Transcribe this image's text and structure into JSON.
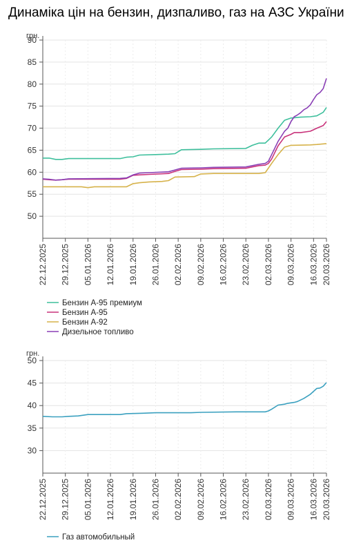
{
  "page": {
    "title": "Динаміка цін на бензин, дизпаливо, газ на АЗС України"
  },
  "chart_data": [
    {
      "type": "line",
      "ylabel": "грн.",
      "ylim": [
        45,
        90
      ],
      "yticks": [
        50,
        55,
        60,
        65,
        70,
        75,
        80,
        85,
        90
      ],
      "x_range": [
        "2025-12-22",
        "2026-03-20"
      ],
      "xticks": [
        "22.12.2025",
        "29.12.2025",
        "05.01.2026",
        "12.01.2026",
        "19.01.2026",
        "26.01.2026",
        "02.02.2026",
        "09.02.2026",
        "16.02.2026",
        "23.02.2026",
        "02.03.2026",
        "09.03.2026",
        "16.03.2026",
        "20.03.2026"
      ],
      "grid": true,
      "legend_position": "bottom",
      "series": [
        {
          "name": "Бензин А-95 премиум",
          "color": "#3dbf9c",
          "points": [
            [
              "2025-12-22",
              63.2
            ],
            [
              "2025-12-24",
              63.2
            ],
            [
              "2025-12-26",
              62.9
            ],
            [
              "2025-12-28",
              62.9
            ],
            [
              "2025-12-30",
              63.1
            ],
            [
              "2026-01-15",
              63.1
            ],
            [
              "2026-01-17",
              63.4
            ],
            [
              "2026-01-19",
              63.5
            ],
            [
              "2026-01-21",
              63.9
            ],
            [
              "2026-01-26",
              64.0
            ],
            [
              "2026-01-30",
              64.1
            ],
            [
              "2026-02-01",
              64.2
            ],
            [
              "2026-02-03",
              65.1
            ],
            [
              "2026-02-09",
              65.2
            ],
            [
              "2026-02-13",
              65.3
            ],
            [
              "2026-02-23",
              65.4
            ],
            [
              "2026-02-25",
              66.1
            ],
            [
              "2026-02-27",
              66.6
            ],
            [
              "2026-03-01",
              66.6
            ],
            [
              "2026-03-03",
              68.0
            ],
            [
              "2026-03-05",
              70.0
            ],
            [
              "2026-03-07",
              71.8
            ],
            [
              "2026-03-09",
              72.3
            ],
            [
              "2026-03-12",
              72.5
            ],
            [
              "2026-03-15",
              72.6
            ],
            [
              "2026-03-17",
              72.8
            ],
            [
              "2026-03-19",
              73.6
            ],
            [
              "2026-03-20",
              74.7
            ]
          ]
        },
        {
          "name": "Бензин А-95",
          "color": "#c8327a",
          "points": [
            [
              "2025-12-22",
              58.4
            ],
            [
              "2025-12-24",
              58.3
            ],
            [
              "2025-12-26",
              58.2
            ],
            [
              "2025-12-28",
              58.3
            ],
            [
              "2025-12-30",
              58.4
            ],
            [
              "2026-01-15",
              58.4
            ],
            [
              "2026-01-17",
              58.6
            ],
            [
              "2026-01-19",
              59.3
            ],
            [
              "2026-01-21",
              59.4
            ],
            [
              "2026-01-24",
              59.5
            ],
            [
              "2026-01-30",
              59.7
            ],
            [
              "2026-02-01",
              60.2
            ],
            [
              "2026-02-03",
              60.6
            ],
            [
              "2026-02-09",
              60.7
            ],
            [
              "2026-02-13",
              60.8
            ],
            [
              "2026-02-23",
              60.9
            ],
            [
              "2026-02-25",
              61.2
            ],
            [
              "2026-02-27",
              61.5
            ],
            [
              "2026-03-01",
              61.6
            ],
            [
              "2026-03-02",
              62.0
            ],
            [
              "2026-03-03",
              63.0
            ],
            [
              "2026-03-05",
              66.0
            ],
            [
              "2026-03-07",
              68.0
            ],
            [
              "2026-03-09",
              68.6
            ],
            [
              "2026-03-10",
              69.0
            ],
            [
              "2026-03-12",
              69.0
            ],
            [
              "2026-03-15",
              69.3
            ],
            [
              "2026-03-17",
              70.0
            ],
            [
              "2026-03-19",
              70.6
            ],
            [
              "2026-03-20",
              71.5
            ]
          ]
        },
        {
          "name": "Бензин А-92",
          "color": "#d6b24a",
          "points": [
            [
              "2025-12-22",
              56.7
            ],
            [
              "2026-01-03",
              56.7
            ],
            [
              "2026-01-05",
              56.5
            ],
            [
              "2026-01-07",
              56.7
            ],
            [
              "2026-01-17",
              56.7
            ],
            [
              "2026-01-19",
              57.4
            ],
            [
              "2026-01-21",
              57.6
            ],
            [
              "2026-01-24",
              57.8
            ],
            [
              "2026-01-28",
              57.9
            ],
            [
              "2026-01-30",
              58.1
            ],
            [
              "2026-02-01",
              58.9
            ],
            [
              "2026-02-07",
              59.0
            ],
            [
              "2026-02-09",
              59.6
            ],
            [
              "2026-02-13",
              59.7
            ],
            [
              "2026-02-27",
              59.7
            ],
            [
              "2026-03-01",
              59.9
            ],
            [
              "2026-03-03",
              62.0
            ],
            [
              "2026-03-05",
              64.0
            ],
            [
              "2026-03-07",
              65.7
            ],
            [
              "2026-03-09",
              66.1
            ],
            [
              "2026-03-15",
              66.2
            ],
            [
              "2026-03-17",
              66.3
            ],
            [
              "2026-03-20",
              66.5
            ]
          ]
        },
        {
          "name": "Дизельное топливо",
          "color": "#8a3fb5",
          "points": [
            [
              "2025-12-22",
              58.5
            ],
            [
              "2025-12-24",
              58.4
            ],
            [
              "2025-12-26",
              58.2
            ],
            [
              "2025-12-28",
              58.3
            ],
            [
              "2025-12-30",
              58.5
            ],
            [
              "2026-01-15",
              58.6
            ],
            [
              "2026-01-17",
              58.7
            ],
            [
              "2026-01-19",
              59.4
            ],
            [
              "2026-01-21",
              59.8
            ],
            [
              "2026-01-24",
              59.9
            ],
            [
              "2026-01-30",
              60.1
            ],
            [
              "2026-02-01",
              60.5
            ],
            [
              "2026-02-03",
              60.9
            ],
            [
              "2026-02-09",
              61.0
            ],
            [
              "2026-02-13",
              61.1
            ],
            [
              "2026-02-23",
              61.2
            ],
            [
              "2026-02-25",
              61.5
            ],
            [
              "2026-02-27",
              61.8
            ],
            [
              "2026-03-01",
              62.0
            ],
            [
              "2026-03-02",
              62.5
            ],
            [
              "2026-03-03",
              64.0
            ],
            [
              "2026-03-05",
              67.0
            ],
            [
              "2026-03-07",
              69.3
            ],
            [
              "2026-03-08",
              70.0
            ],
            [
              "2026-03-09",
              71.5
            ],
            [
              "2026-03-10",
              72.6
            ],
            [
              "2026-03-11",
              73.0
            ],
            [
              "2026-03-12",
              73.5
            ],
            [
              "2026-03-13",
              74.2
            ],
            [
              "2026-03-14",
              74.6
            ],
            [
              "2026-03-15",
              75.3
            ],
            [
              "2026-03-16",
              76.5
            ],
            [
              "2026-03-17",
              77.6
            ],
            [
              "2026-03-18",
              78.1
            ],
            [
              "2026-03-19",
              79.0
            ],
            [
              "2026-03-20",
              81.3
            ]
          ]
        }
      ]
    },
    {
      "type": "line",
      "ylabel": "грн.",
      "ylim": [
        25,
        50
      ],
      "yticks": [
        30,
        35,
        40,
        45,
        50
      ],
      "x_range": [
        "2025-12-22",
        "2026-03-20"
      ],
      "xticks": [
        "22.12.2025",
        "29.12.2025",
        "05.01.2026",
        "12.01.2026",
        "19.01.2026",
        "26.01.2026",
        "02.02.2026",
        "09.02.2026",
        "16.02.2026",
        "23.02.2026",
        "02.03.2026",
        "09.03.2026",
        "16.03.2026",
        "20.03.2026"
      ],
      "grid": true,
      "legend_position": "bottom",
      "series": [
        {
          "name": "Газ автомобильный",
          "color": "#3aa0bf",
          "points": [
            [
              "2025-12-22",
              37.6
            ],
            [
              "2025-12-25",
              37.5
            ],
            [
              "2025-12-28",
              37.5
            ],
            [
              "2025-12-30",
              37.6
            ],
            [
              "2026-01-02",
              37.7
            ],
            [
              "2026-01-05",
              38.0
            ],
            [
              "2026-01-15",
              38.0
            ],
            [
              "2026-01-17",
              38.2
            ],
            [
              "2026-01-22",
              38.3
            ],
            [
              "2026-01-26",
              38.4
            ],
            [
              "2026-02-03",
              38.4
            ],
            [
              "2026-02-06",
              38.4
            ],
            [
              "2026-02-09",
              38.5
            ],
            [
              "2026-02-20",
              38.6
            ],
            [
              "2026-03-01",
              38.6
            ],
            [
              "2026-03-02",
              38.8
            ],
            [
              "2026-03-03",
              39.2
            ],
            [
              "2026-03-05",
              40.1
            ],
            [
              "2026-03-07",
              40.3
            ],
            [
              "2026-03-08",
              40.5
            ],
            [
              "2026-03-10",
              40.7
            ],
            [
              "2026-03-11",
              40.9
            ],
            [
              "2026-03-13",
              41.6
            ],
            [
              "2026-03-15",
              42.5
            ],
            [
              "2026-03-17",
              43.8
            ],
            [
              "2026-03-18",
              43.9
            ],
            [
              "2026-03-19",
              44.3
            ],
            [
              "2026-03-20",
              45.1
            ]
          ]
        }
      ]
    }
  ]
}
